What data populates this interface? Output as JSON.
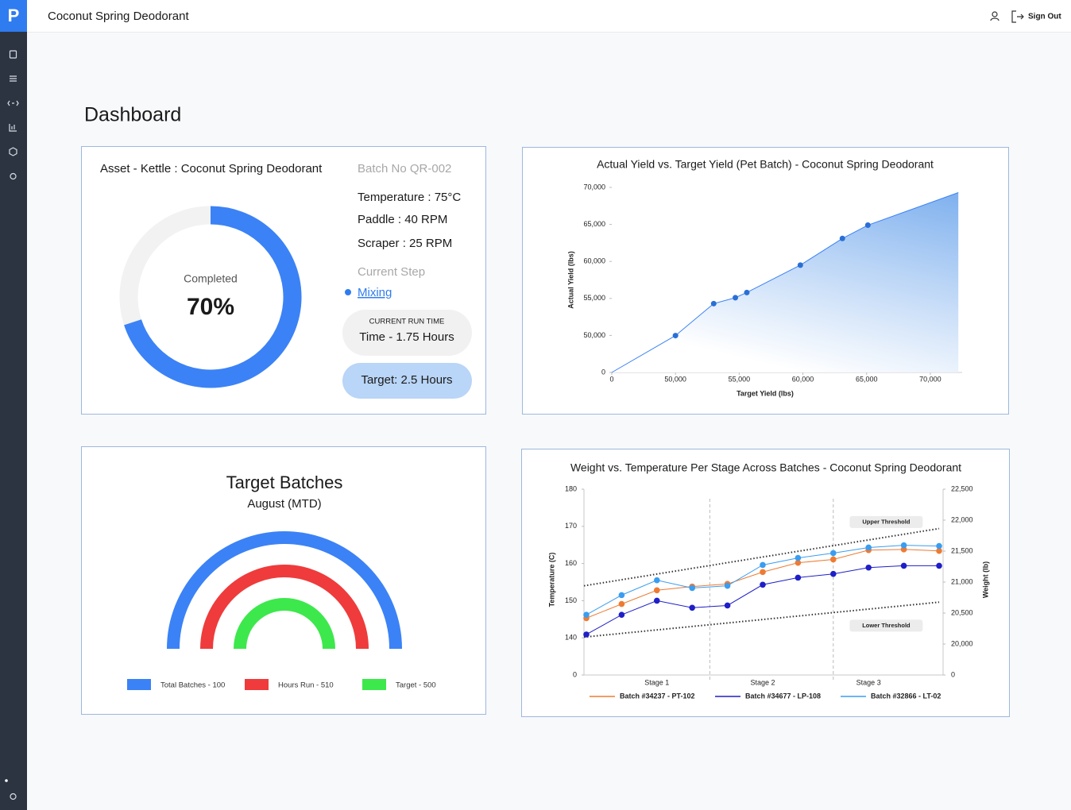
{
  "header": {
    "logo": "P",
    "title": "Coconut Spring Deodorant",
    "sign_out": "Sign Out"
  },
  "page_title": "Dashboard",
  "kettle": {
    "asset": "Asset - Kettle : Coconut Spring Deodorant",
    "batch": "Batch No QR-002",
    "progress": {
      "value": 70,
      "label": "70%"
    },
    "completed_label": "Completed",
    "params": [
      "Temperature : 75°C",
      "Paddle : 40 RPM",
      "Scraper : 25 RPM"
    ],
    "current_step_label": "Current Step",
    "current_step": "Mixing",
    "run_time_label": "CURRENT RUN TIME",
    "run_time": "Time - 1.75 Hours",
    "target": "Target: 2.5 Hours"
  },
  "chart_data": [
    {
      "type": "area",
      "title": "Actual Yield vs. Target Yield (Pet Batch) - Coconut Spring Deodorant",
      "x_label": "Target Yield (lbs)",
      "y_label": "Actual Yield (lbs)",
      "color": "#3b82f6",
      "x": [
        0,
        50000,
        53000,
        54700,
        55600,
        59800,
        63100,
        65100,
        72200
      ],
      "values": [
        0,
        49800,
        54300,
        55100,
        55800,
        59500,
        63100,
        64900,
        69300
      ],
      "xlim": [
        0,
        72500
      ],
      "xticks": [
        0,
        {
          "value": 50000,
          "label": "50,000"
        },
        {
          "value": 55000,
          "label": "55,000"
        },
        {
          "value": 60000,
          "label": "60,000"
        },
        {
          "value": 65000,
          "label": "65,000"
        },
        {
          "value": 70000,
          "label": "70,000"
        }
      ],
      "ylim": [
        0,
        70000
      ],
      "yticks": [
        0,
        {
          "value": 50000,
          "label": "50,000"
        },
        {
          "value": 55000,
          "label": "55,000"
        },
        {
          "value": 60000,
          "label": "60,000"
        },
        {
          "value": 65000,
          "label": "65,000"
        },
        {
          "value": 70000,
          "label": "70,000"
        }
      ]
    },
    {
      "type": "semicircle",
      "title": "Target Batches",
      "subtitle": "August (MTD)",
      "series": [
        {
          "name": "Total Batches - 100",
          "color": "#3b82f6"
        },
        {
          "name": "Hours Run - 510",
          "color": "#ef3b3b"
        },
        {
          "name": "Target - 500",
          "color": "#3de84c"
        }
      ]
    },
    {
      "type": "line",
      "title": "Weight vs. Temperature Per Stage Across Batches - Coconut Spring Deodorant",
      "categories": [
        null,
        null,
        "Stage 1",
        null,
        null,
        "Stage 2",
        null,
        null,
        "Stage 3",
        null,
        null
      ],
      "y_label": "Temperature (C)",
      "y2_label": "Weight (lb)",
      "ylim": [
        0,
        180
      ],
      "yticks": [
        0,
        140,
        150,
        160,
        170,
        180
      ],
      "y2lim": [
        0,
        22500
      ],
      "y2ticks": [
        0,
        {
          "value": 20000,
          "label": "20,000"
        },
        {
          "value": 20500,
          "label": "20,500"
        },
        {
          "value": 21000,
          "label": "21,000"
        },
        {
          "value": 21500,
          "label": "21,500"
        },
        {
          "value": 22000,
          "label": "22,000"
        },
        {
          "value": 22500,
          "label": "22,500"
        }
      ],
      "series": [
        {
          "name": "Batch #34237 - PT-102",
          "color": "#ee7b33",
          "values": [
            145.3,
            149.1,
            152.8,
            153.8,
            154.5,
            157.7,
            160.2,
            161.1,
            163.6,
            163.8,
            163.4
          ]
        },
        {
          "name": "Batch #34677 - LP-108",
          "color": "#1f1fc8",
          "values": [
            140.9,
            146.2,
            150.0,
            148.1,
            148.7,
            154.3,
            156.2,
            157.2,
            158.9,
            159.4,
            159.4
          ]
        },
        {
          "name": "Batch #32866 - LT-02",
          "color": "#3a9df0",
          "values": [
            146.2,
            151.5,
            155.5,
            153.4,
            154.0,
            159.6,
            161.5,
            162.8,
            164.3,
            164.9,
            164.7
          ]
        }
      ],
      "thresholds": [
        {
          "label": "Upper Threshold",
          "values": [
            154.0,
            169.4
          ]
        },
        {
          "label": "Lower Threshold",
          "values": [
            140.2,
            149.6
          ]
        }
      ]
    }
  ]
}
